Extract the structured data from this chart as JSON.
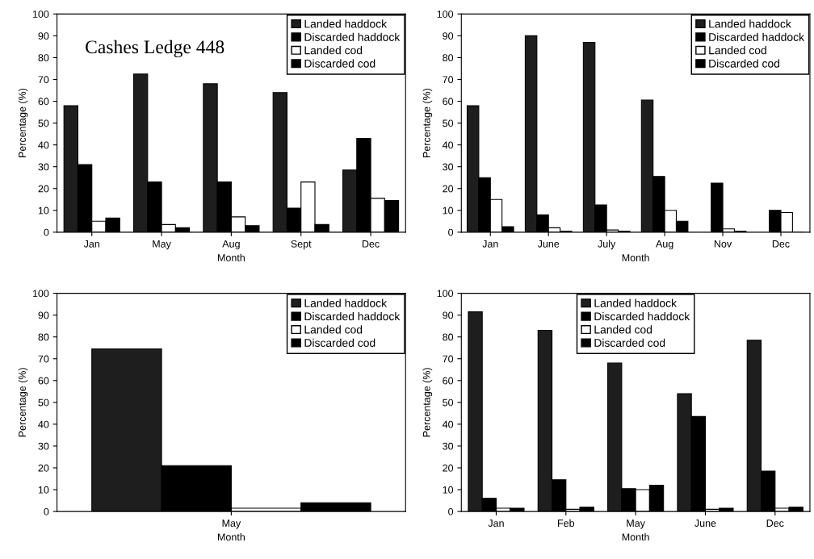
{
  "chart_data": [
    {
      "type": "bar",
      "xlabel": "Month",
      "ylabel": "Percentage (%)",
      "annotations": [
        "Cashes Ledge 448"
      ],
      "categories": [
        "Jan",
        "May",
        "Aug",
        "Sept",
        "Dec"
      ],
      "ylim": [
        0,
        100
      ],
      "yticks": [
        0,
        10,
        20,
        30,
        40,
        50,
        60,
        70,
        80,
        90,
        100
      ],
      "legend": "top right",
      "grid": false,
      "series": [
        {
          "name": "Landed haddock",
          "color": "#1e1e1e",
          "values": [
            58,
            72.5,
            68,
            64,
            28.5
          ]
        },
        {
          "name": "Discarded haddock",
          "color": "#000000",
          "values": [
            31,
            23,
            23,
            11,
            43
          ]
        },
        {
          "name": "Landed cod",
          "color": "#ffffff",
          "values": [
            5,
            3.5,
            7,
            23,
            15.5
          ]
        },
        {
          "name": "Discarded cod",
          "color": "#000000",
          "values": [
            6.5,
            2,
            3,
            3.5,
            14.5
          ]
        }
      ]
    },
    {
      "type": "bar",
      "xlabel": "Month",
      "ylabel": "Percentage (%)",
      "categories": [
        "Jan",
        "June",
        "July",
        "Aug",
        "Nov",
        "Dec"
      ],
      "ylim": [
        0,
        100
      ],
      "yticks": [
        0,
        10,
        20,
        30,
        40,
        50,
        60,
        70,
        80,
        90,
        100
      ],
      "legend": "top right",
      "grid": false,
      "series": [
        {
          "name": "Landed haddock",
          "color": "#1e1e1e",
          "values": [
            58,
            90,
            87,
            60.5,
            null,
            null
          ]
        },
        {
          "name": "Discarded haddock",
          "color": "#000000",
          "values": [
            25,
            8,
            12.5,
            25.5,
            22.5,
            10
          ]
        },
        {
          "name": "Landed cod",
          "color": "#ffffff",
          "values": [
            15,
            2,
            1,
            10,
            1.5,
            9
          ]
        },
        {
          "name": "Discarded cod",
          "color": "#000000",
          "values": [
            2.5,
            0.5,
            0.5,
            5,
            0.5,
            0
          ]
        }
      ]
    },
    {
      "type": "bar",
      "xlabel": "Month",
      "ylabel": "Percentage (%)",
      "categories": [
        "May"
      ],
      "ylim": [
        0,
        100
      ],
      "yticks": [
        0,
        10,
        20,
        30,
        40,
        50,
        60,
        70,
        80,
        90,
        100
      ],
      "legend": "top right",
      "grid": false,
      "series": [
        {
          "name": "Landed haddock",
          "color": "#1e1e1e",
          "values": [
            74.5
          ]
        },
        {
          "name": "Discarded haddock",
          "color": "#000000",
          "values": [
            21
          ]
        },
        {
          "name": "Landed cod",
          "color": "#ffffff",
          "values": [
            1.5
          ]
        },
        {
          "name": "Discarded cod",
          "color": "#000000",
          "values": [
            4
          ]
        }
      ]
    },
    {
      "type": "bar",
      "xlabel": "Month",
      "ylabel": "Percentage (%)",
      "categories": [
        "Jan",
        "Feb",
        "May",
        "June",
        "Dec"
      ],
      "ylim": [
        0,
        100
      ],
      "yticks": [
        0,
        10,
        20,
        30,
        40,
        50,
        60,
        70,
        80,
        90,
        100
      ],
      "legend": "top",
      "grid": false,
      "series": [
        {
          "name": "Landed haddock",
          "color": "#1e1e1e",
          "values": [
            91.5,
            83,
            68,
            54,
            78.5
          ]
        },
        {
          "name": "Discarded haddock",
          "color": "#000000",
          "values": [
            6,
            14.5,
            10.5,
            43.5,
            18.5
          ]
        },
        {
          "name": "Landed cod",
          "color": "#ffffff",
          "values": [
            1.5,
            1,
            10,
            1,
            1.5
          ]
        },
        {
          "name": "Discarded cod",
          "color": "#000000",
          "values": [
            1.5,
            2,
            12,
            1.5,
            2
          ]
        }
      ]
    }
  ]
}
